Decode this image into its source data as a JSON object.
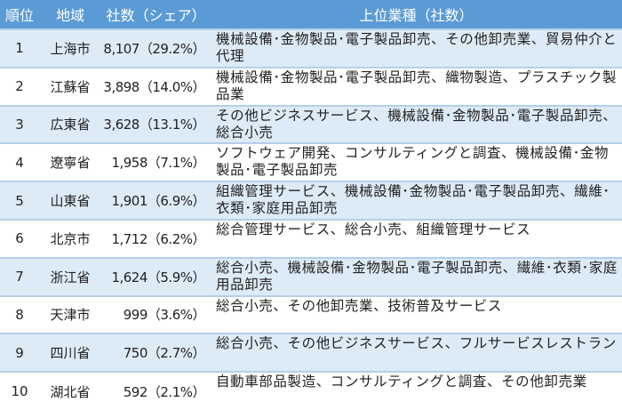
{
  "headers": {
    "rank": "順位",
    "region": "地域",
    "count": "社数（シェア）",
    "industries": "上位業種（社数）"
  },
  "colors": {
    "header": "#5B9BD5",
    "odd_row": "#DDEBF7",
    "even_row": "#FFFFFF"
  },
  "rows": [
    {
      "rank": "1",
      "region": "上海市",
      "count": "8,107（29.2%）",
      "industries": "機械設備･金物製品･電子製品卸売、その他卸売業、貿易仲介と代理"
    },
    {
      "rank": "2",
      "region": "江蘇省",
      "count": "3,898（14.0%）",
      "industries": "機械設備･金物製品･電子製品卸売、織物製造、プラスチック製品業"
    },
    {
      "rank": "3",
      "region": "広東省",
      "count": "3,628（13.1%）",
      "industries": "その他ビジネスサービス、機械設備･金物製品･電子製品卸売、総合小売"
    },
    {
      "rank": "4",
      "region": "遼寧省",
      "count": "1,958（7.1%）",
      "industries": "ソフトウェア開発、コンサルティングと調査、機械設備･金物製品･電子製品卸売"
    },
    {
      "rank": "5",
      "region": "山東省",
      "count": "1,901（6.9%）",
      "industries": "組織管理サービス、機械設備･金物製品･電子製品卸売、繊維･衣類･家庭用品卸売"
    },
    {
      "rank": "6",
      "region": "北京市",
      "count": "1,712（6.2%）",
      "industries": "総合管理サービス、総合小売、組織管理サービス"
    },
    {
      "rank": "7",
      "region": "浙江省",
      "count": "1,624（5.9%）",
      "industries": "総合小売、機械設備･金物製品･電子製品卸売、繊維･衣類･家庭用品卸売"
    },
    {
      "rank": "8",
      "region": "天津市",
      "count": "999（3.6%）",
      "industries": "総合小売、その他卸売業、技術普及サービス"
    },
    {
      "rank": "9",
      "region": "四川省",
      "count": "750（2.7%）",
      "industries": "総合小売、その他ビジネスサービス、フルサービスレストラン"
    },
    {
      "rank": "10",
      "region": "湖北省",
      "count": "592（2.1%）",
      "industries": "自動車部品製造、コンサルティングと調査、その他卸売業"
    }
  ]
}
